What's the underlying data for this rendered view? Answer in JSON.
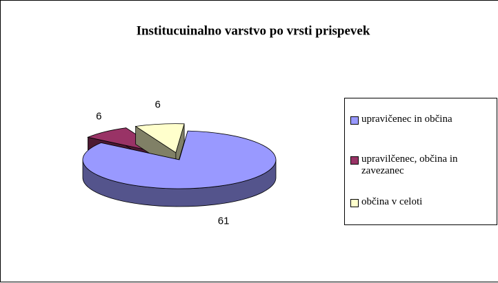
{
  "chart_data": {
    "type": "pie3d",
    "title": "Institucuinalno varstvo po vrsti prispevek",
    "categories": [
      "upravičenec in občina",
      "upravilčenec, občina in zavezanec",
      "občina v celoti"
    ],
    "values": [
      61,
      6,
      6
    ],
    "colors": [
      "#9999ff",
      "#993366",
      "#ffffcc"
    ],
    "legend": "right"
  }
}
